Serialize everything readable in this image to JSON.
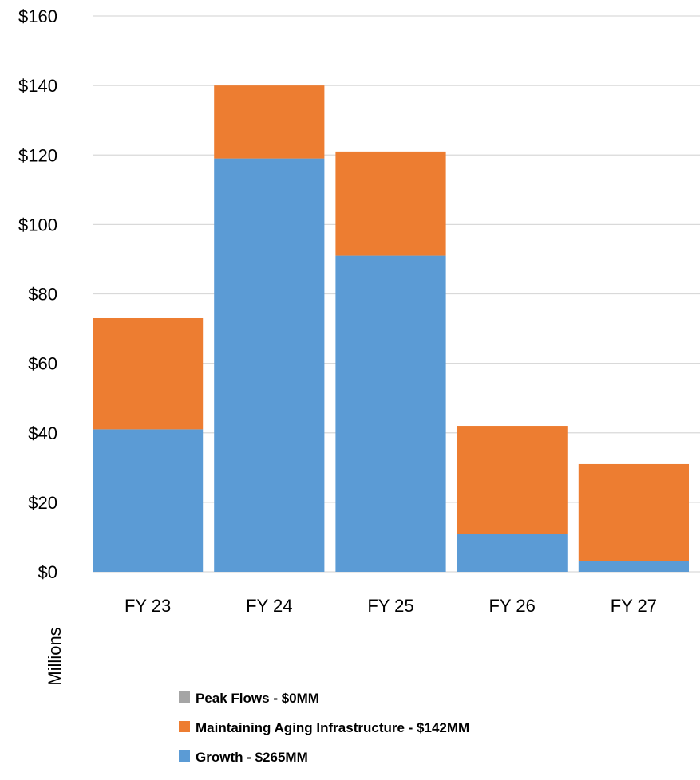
{
  "chart_data": {
    "type": "bar",
    "stacked": true,
    "categories": [
      "FY 23",
      "FY 24",
      "FY 25",
      "FY 26",
      "FY 27"
    ],
    "series": [
      {
        "name": "Growth  - $265MM",
        "color": "#5b9bd5",
        "values": [
          41,
          119,
          91,
          11,
          3
        ]
      },
      {
        "name": "Maintaining Aging Infrastructure - $142MM",
        "color": "#ed7d31",
        "values": [
          32,
          21,
          30,
          31,
          28
        ]
      },
      {
        "name": "Peak Flows - $0MM",
        "color": "#a5a5a5",
        "values": [
          0,
          0,
          0,
          0,
          0
        ]
      }
    ],
    "yticks": [
      "$0",
      "$20",
      "$40",
      "$60",
      "$80",
      "$100",
      "$120",
      "$140",
      "$160"
    ],
    "ylim": [
      0,
      160
    ],
    "ylabel": "Millions",
    "xlabel": "",
    "title": "",
    "grid": true,
    "legend_position": "bottom",
    "legend_order": [
      "Peak Flows - $0MM",
      "Maintaining Aging Infrastructure - $142MM",
      "Growth  - $265MM"
    ]
  }
}
